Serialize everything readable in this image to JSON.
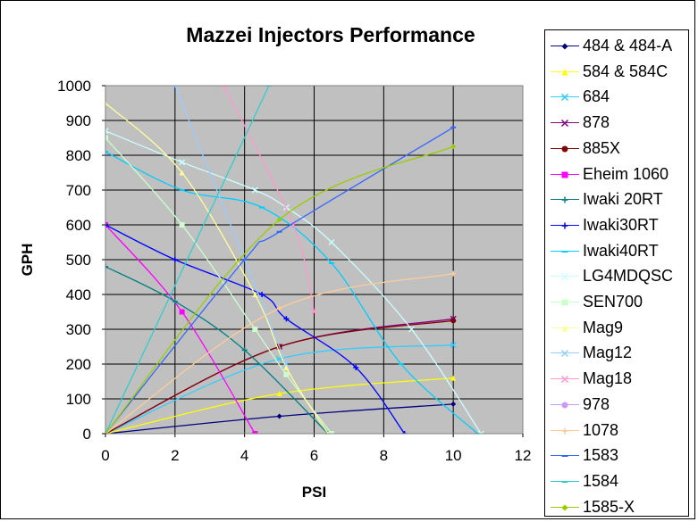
{
  "chart_data": {
    "type": "line",
    "title": "Mazzei Injectors Performance",
    "xlabel": "PSI",
    "ylabel": "GPH",
    "xlim": [
      0,
      12
    ],
    "ylim": [
      0,
      1000
    ],
    "xticks": [
      "0",
      "2",
      "4",
      "6",
      "8",
      "10",
      "12"
    ],
    "yticks": [
      "0",
      "100",
      "200",
      "300",
      "400",
      "500",
      "600",
      "700",
      "800",
      "900",
      "1000"
    ],
    "grid": "major gridlines",
    "plot_background": "#c0c0c0",
    "legend_position": "right",
    "series": [
      {
        "name": "484 & 484-A",
        "color": "#000080",
        "marker": "diamond",
        "x": [
          0,
          5,
          10
        ],
        "y": [
          0,
          50,
          85
        ]
      },
      {
        "name": "584 & 584C",
        "color": "#ffff00",
        "marker": "triangle",
        "x": [
          0,
          5,
          10
        ],
        "y": [
          0,
          115,
          160
        ]
      },
      {
        "name": "684",
        "color": "#33ccff",
        "marker": "x",
        "x": [
          0,
          5,
          10
        ],
        "y": [
          0,
          215,
          255
        ]
      },
      {
        "name": "878",
        "color": "#800080",
        "marker": "x",
        "x": [
          0,
          5,
          10
        ],
        "y": [
          0,
          250,
          330
        ]
      },
      {
        "name": "885X",
        "color": "#800000",
        "marker": "circle",
        "x": [
          0,
          5,
          10
        ],
        "y": [
          0,
          250,
          325
        ]
      },
      {
        "name": "Eheim 1060",
        "color": "#ff00ff",
        "marker": "square",
        "x": [
          0,
          2.2,
          4.3
        ],
        "y": [
          600,
          350,
          0
        ]
      },
      {
        "name": "Iwaki 20RT",
        "color": "#008080",
        "marker": "plus",
        "x": [
          0,
          2,
          4,
          6.4
        ],
        "y": [
          480,
          380,
          240,
          0
        ]
      },
      {
        "name": "Iwaki30RT",
        "color": "#0000ff",
        "marker": "plus",
        "x": [
          0,
          2,
          4.5,
          5.2,
          7.2,
          8.6
        ],
        "y": [
          600,
          500,
          400,
          330,
          190,
          0
        ]
      },
      {
        "name": "Iwaki40RT",
        "color": "#00ccff",
        "marker": "dash",
        "x": [
          0,
          2.2,
          4.5,
          6.5,
          8.5,
          10.7
        ],
        "y": [
          810,
          700,
          650,
          490,
          200,
          0
        ]
      },
      {
        "name": "LG4MDQSC",
        "color": "#ccffff",
        "marker": "x",
        "x": [
          0,
          2.2,
          4.3,
          5.2,
          6.5,
          8.8,
          10.8
        ],
        "y": [
          870,
          780,
          700,
          650,
          550,
          300,
          0
        ]
      },
      {
        "name": "SEN700",
        "color": "#ccffcc",
        "marker": "square",
        "x": [
          0,
          2.2,
          4.3,
          5.2,
          6.5
        ],
        "y": [
          850,
          600,
          300,
          170,
          0
        ]
      },
      {
        "name": "Mag9",
        "color": "#ffff99",
        "marker": "triangle",
        "x": [
          0,
          2.2,
          4.3,
          5.2,
          6.4
        ],
        "y": [
          950,
          750,
          400,
          190,
          0
        ]
      },
      {
        "name": "Mag12",
        "color": "#99ccff",
        "marker": "x",
        "x": [
          2,
          5.2
        ],
        "y": [
          1000,
          200
        ]
      },
      {
        "name": "Mag18",
        "color": "#ff99cc",
        "marker": "x",
        "x": [
          3.4,
          5.4,
          6
        ],
        "y": [
          1000,
          600,
          350
        ]
      },
      {
        "name": "978",
        "color": "#cc99ff",
        "marker": "circle",
        "x": [],
        "y": []
      },
      {
        "name": "1078",
        "color": "#ffcc99",
        "marker": "plus",
        "x": [
          0,
          5,
          10
        ],
        "y": [
          0,
          360,
          460
        ]
      },
      {
        "name": "1583",
        "color": "#3366ff",
        "marker": "dash",
        "x": [
          0,
          4,
          5,
          10
        ],
        "y": [
          0,
          500,
          580,
          880
        ]
      },
      {
        "name": "1584",
        "color": "#33cccc",
        "marker": "dash",
        "x": [
          0,
          4.7
        ],
        "y": [
          0,
          1000
        ]
      },
      {
        "name": "1585-X",
        "color": "#99cc00",
        "marker": "diamond",
        "x": [
          0,
          5,
          10
        ],
        "y": [
          0,
          615,
          825
        ]
      }
    ]
  }
}
